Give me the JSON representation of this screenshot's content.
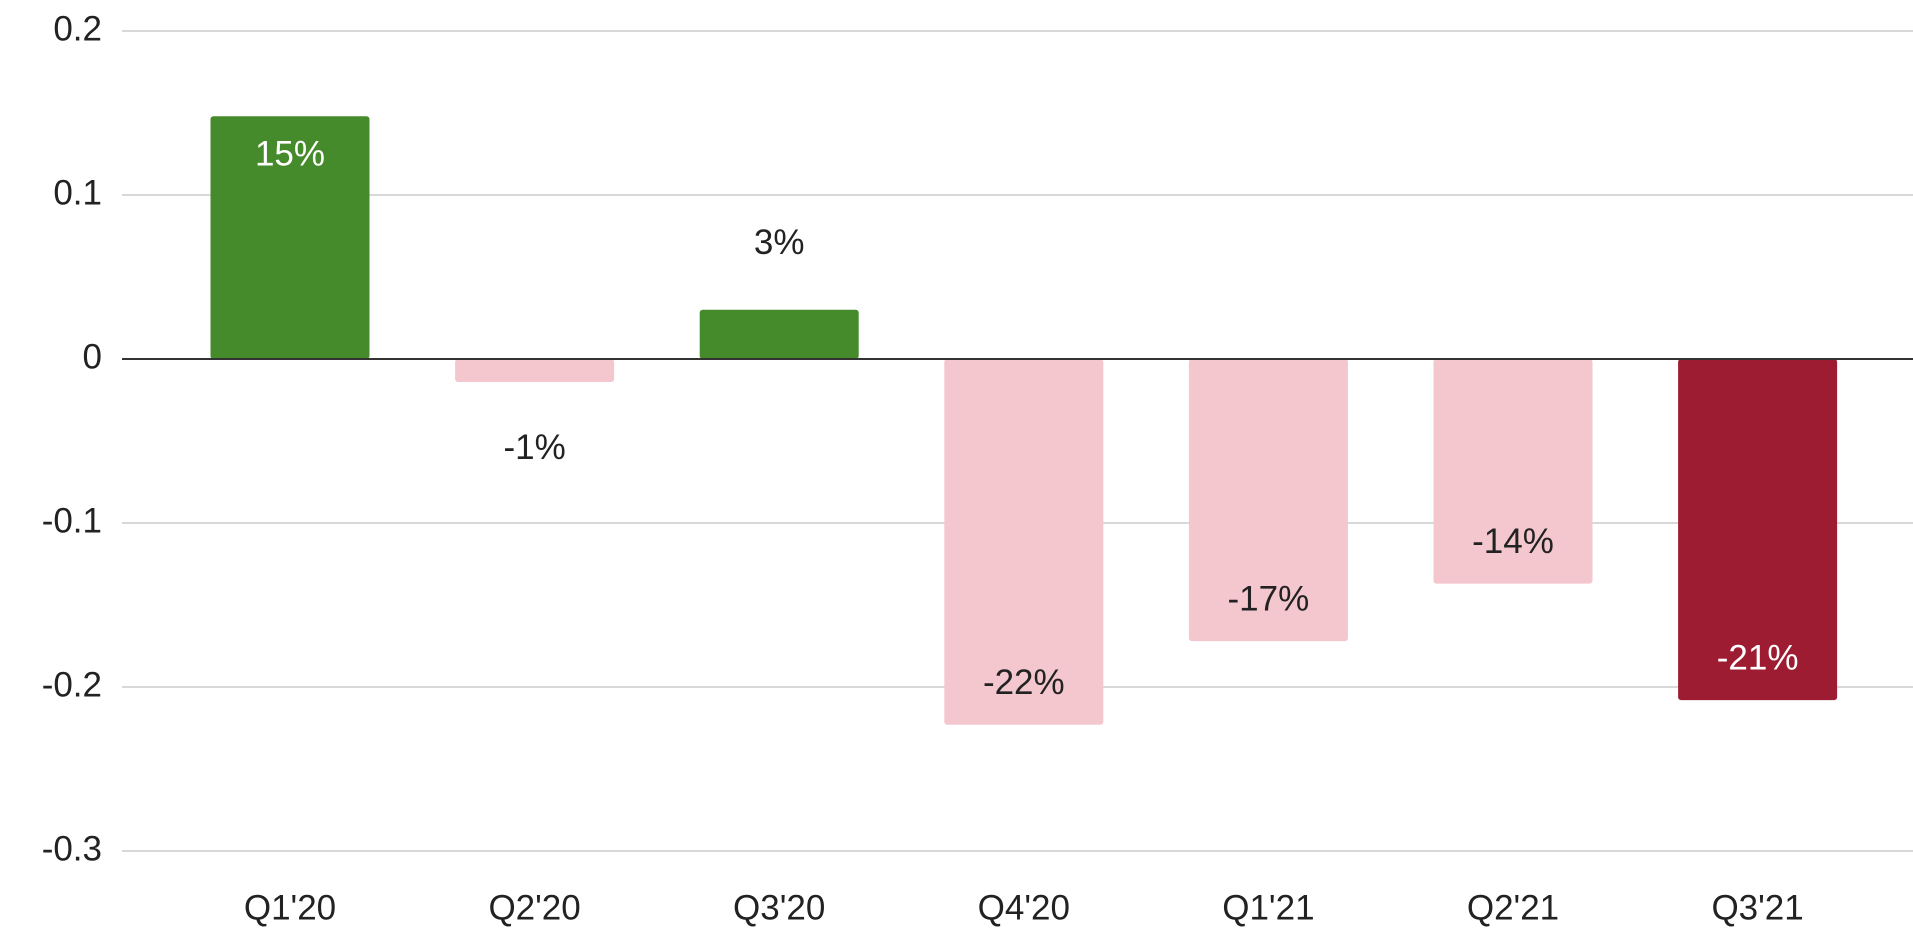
{
  "chart_data": {
    "type": "bar",
    "categories": [
      "Q1'20",
      "Q2'20",
      "Q3'20",
      "Q4'20",
      "Q1'21",
      "Q2'21",
      "Q3'21"
    ],
    "values": [
      0.148,
      -0.014,
      0.03,
      -0.223,
      -0.172,
      -0.137,
      -0.208
    ],
    "value_labels": [
      "15%",
      "-1%",
      "3%",
      "-22%",
      "-17%",
      "-14%",
      "-21%"
    ],
    "colors": [
      "#458b2c",
      "#f4c7cf",
      "#458b2c",
      "#f4c7cf",
      "#f4c7cf",
      "#f4c7cf",
      "#9e1c32"
    ],
    "ylim": [
      -0.3,
      0.2
    ],
    "yticks": [
      -0.3,
      -0.2,
      -0.1,
      0,
      0.1,
      0.2
    ],
    "grid": true
  }
}
